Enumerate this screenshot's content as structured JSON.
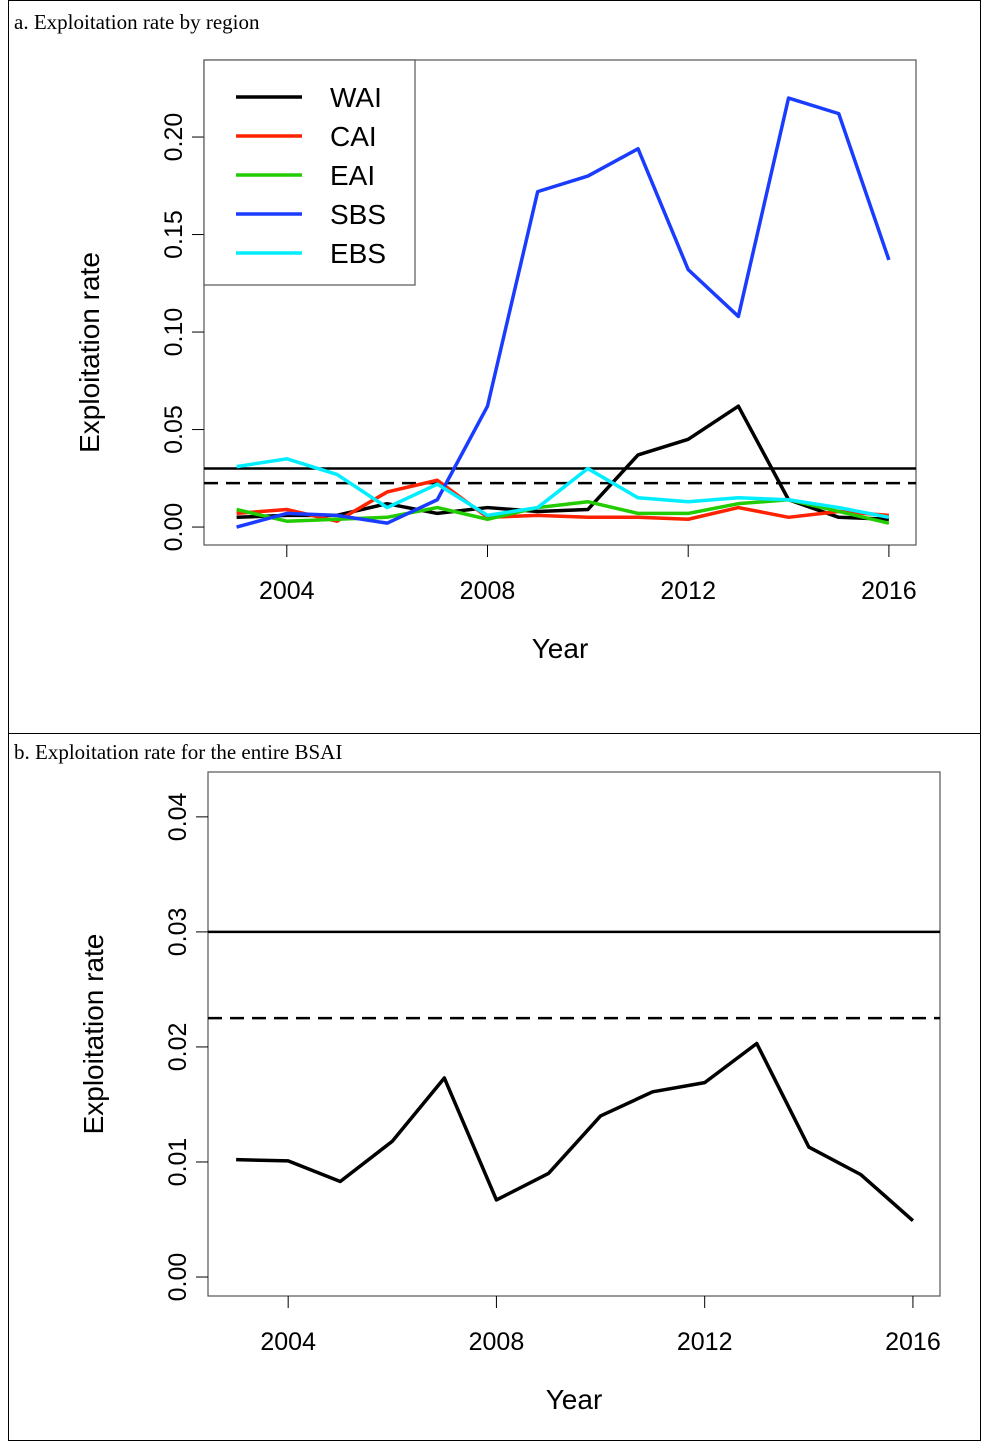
{
  "chart_data": [
    {
      "type": "line",
      "title": "a. Exploitation rate by region",
      "x_label": "Year",
      "y_label": "Exploitation rate",
      "x": [
        2003,
        2004,
        2005,
        2006,
        2007,
        2008,
        2009,
        2010,
        2011,
        2012,
        2013,
        2014,
        2015,
        2016
      ],
      "series": [
        {
          "name": "WAI",
          "color": "#000000",
          "values": [
            0.005,
            0.006,
            0.006,
            0.012,
            0.007,
            0.01,
            0.008,
            0.009,
            0.037,
            0.045,
            0.062,
            0.014,
            0.005,
            0.004
          ]
        },
        {
          "name": "CAI",
          "color": "#ff2200",
          "values": [
            0.007,
            0.009,
            0.003,
            0.018,
            0.024,
            0.005,
            0.006,
            0.005,
            0.005,
            0.004,
            0.01,
            0.005,
            0.008,
            0.006
          ]
        },
        {
          "name": "EAI",
          "color": "#22cc00",
          "values": [
            0.009,
            0.003,
            0.004,
            0.005,
            0.01,
            0.004,
            0.01,
            0.013,
            0.007,
            0.007,
            0.012,
            0.014,
            0.008,
            0.002
          ]
        },
        {
          "name": "SBS",
          "color": "#1a3cff",
          "values": [
            0.0,
            0.007,
            0.006,
            0.002,
            0.014,
            0.062,
            0.172,
            0.18,
            0.194,
            0.132,
            0.108,
            0.22,
            0.212,
            0.137
          ]
        },
        {
          "name": "EBS",
          "color": "#00eeff",
          "values": [
            0.031,
            0.035,
            0.027,
            0.01,
            0.022,
            0.006,
            0.01,
            0.03,
            0.015,
            0.013,
            0.015,
            0.014,
            0.01,
            0.005
          ]
        }
      ],
      "hlines": [
        {
          "value": 0.03,
          "style": "solid"
        },
        {
          "value": 0.0225,
          "style": "dashed"
        }
      ],
      "xlim": [
        2002.35,
        2016.54
      ],
      "xticks": [
        2004,
        2008,
        2012,
        2016
      ],
      "ylim": [
        -0.0092,
        0.2395
      ],
      "yticks": [
        {
          "value": 0,
          "label": "0.00"
        },
        {
          "value": 0.05,
          "label": "0.05"
        },
        {
          "value": 0.1,
          "label": "0.10"
        },
        {
          "value": 0.15,
          "label": "0.15"
        },
        {
          "value": 0.2,
          "label": "0.20"
        }
      ],
      "legend": "topleft"
    },
    {
      "type": "line",
      "title": "b. Exploitation rate for the entire BSAI",
      "x_label": "Year",
      "y_label": "Exploitation rate",
      "x": [
        2003,
        2004,
        2005,
        2006,
        2007,
        2008,
        2009,
        2010,
        2011,
        2012,
        2013,
        2014,
        2015,
        2016
      ],
      "series": [
        {
          "color": "#000000",
          "values": [
            0.0102,
            0.0101,
            0.0083,
            0.0118,
            0.0173,
            0.0067,
            0.009,
            0.014,
            0.0161,
            0.0169,
            0.0203,
            0.0113,
            0.0089,
            0.0049
          ]
        }
      ],
      "hlines": [
        {
          "value": 0.03,
          "style": "solid"
        },
        {
          "value": 0.0225,
          "style": "dashed"
        }
      ],
      "xlim": [
        2002.46,
        2016.52
      ],
      "xticks": [
        2004,
        2008,
        2012,
        2016
      ],
      "ylim": [
        -0.00165,
        0.0439
      ],
      "yticks": [
        {
          "value": 0,
          "label": "0.00"
        },
        {
          "value": 0.01,
          "label": "0.01"
        },
        {
          "value": 0.02,
          "label": "0.02"
        },
        {
          "value": 0.03,
          "label": "0.03"
        },
        {
          "value": 0.04,
          "label": "0.04"
        }
      ]
    }
  ]
}
